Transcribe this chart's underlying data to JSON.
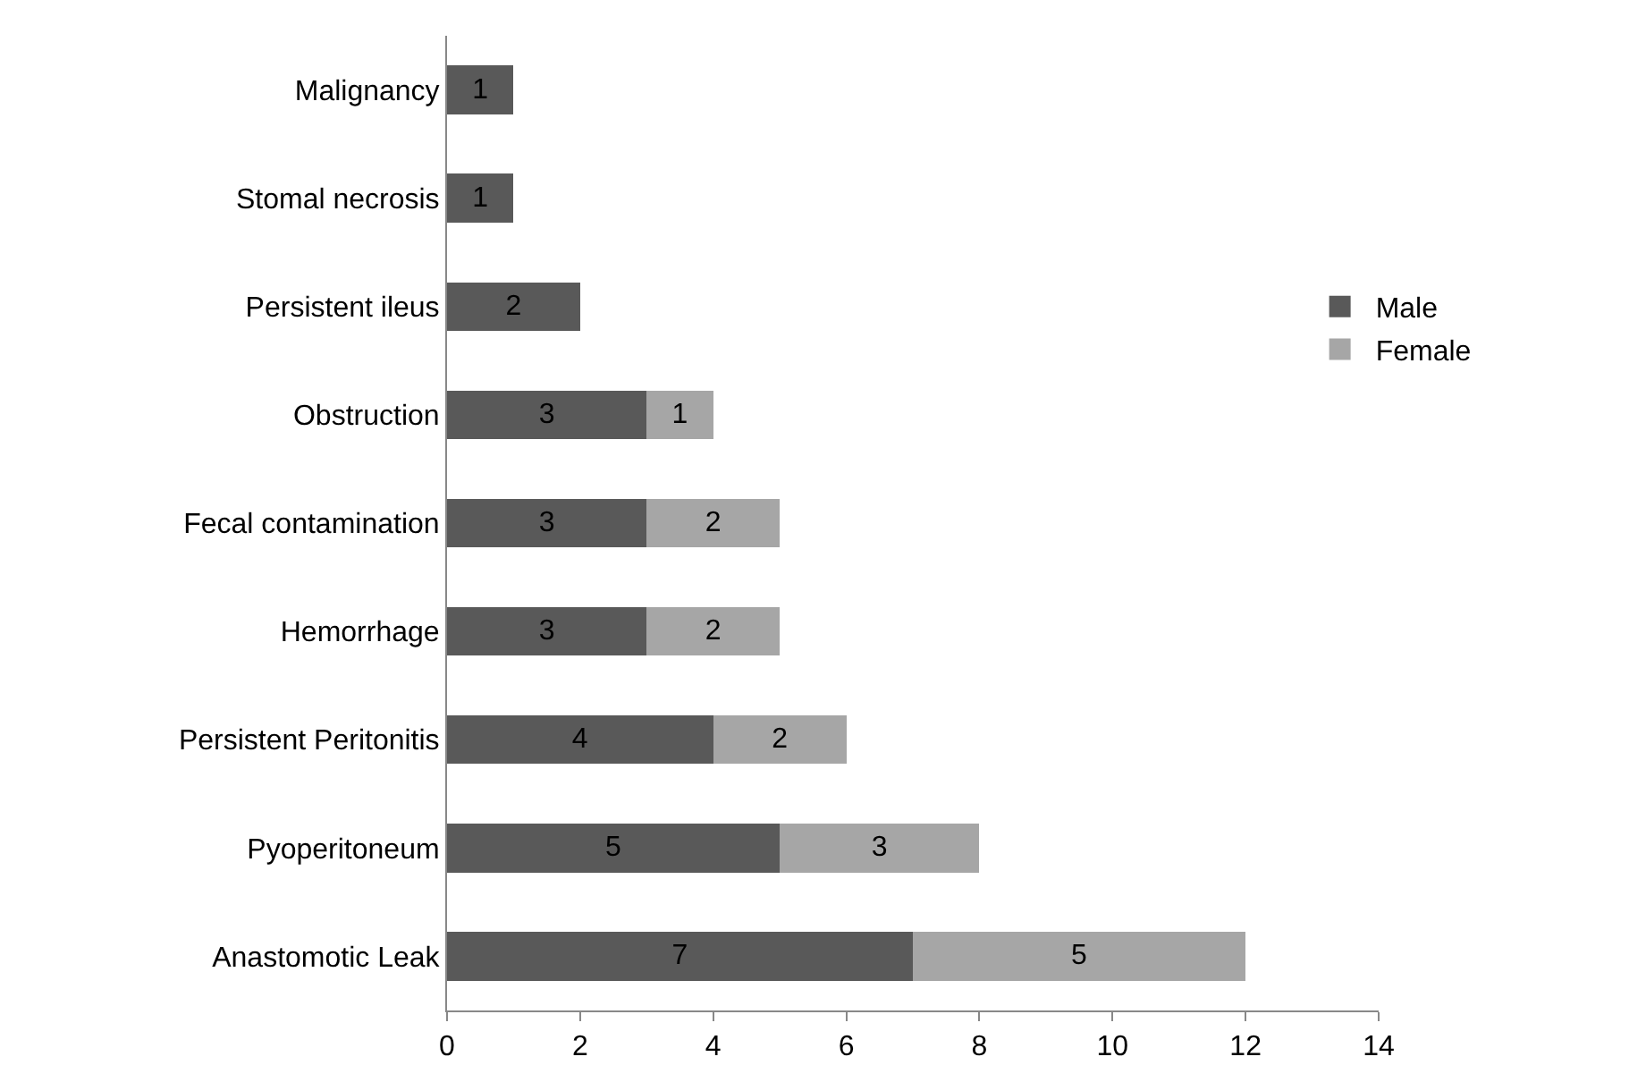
{
  "chart_data": {
    "type": "bar",
    "orientation": "horizontal",
    "stacked": true,
    "data_labels": true,
    "grid": false,
    "legend": "right",
    "categories": [
      "Malignancy",
      "Stomal necrosis",
      "Persistent ileus",
      "Obstruction",
      "Fecal contamination",
      "Hemorrhage",
      "Persistent Peritonitis",
      "Pyoperitoneum",
      "Anastomotic Leak"
    ],
    "series": [
      {
        "name": "Male",
        "color": "#595959",
        "values": [
          1,
          1,
          2,
          3,
          3,
          3,
          4,
          5,
          7
        ]
      },
      {
        "name": "Female",
        "color": "#a6a6a6",
        "values": [
          null,
          null,
          null,
          1,
          2,
          2,
          2,
          3,
          5
        ]
      }
    ],
    "xlim": [
      0,
      14
    ],
    "xticks": [
      0,
      2,
      4,
      6,
      8,
      10,
      12,
      14
    ]
  }
}
